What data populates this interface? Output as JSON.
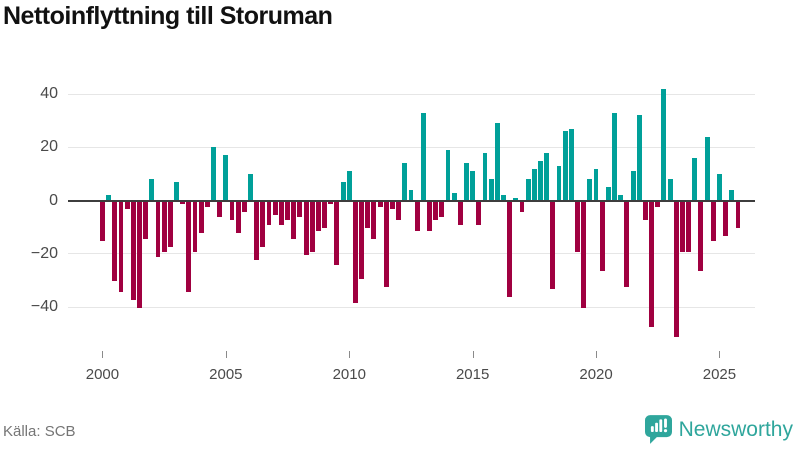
{
  "title": "Nettoinflyttning till Storuman",
  "source": "Källa: SCB",
  "brand": {
    "name": "Newsworthy",
    "color": "#2FA69C"
  },
  "colors": {
    "positive": "#00A099",
    "negative": "#A00040",
    "grid": "#e6e6e6",
    "zero_line": "#3d3d3d",
    "axis_text": "#4a4a4a",
    "title_text": "#111111",
    "source_text": "#757575"
  },
  "chart_data": {
    "type": "bar",
    "title": "Nettoinflyttning till Storuman",
    "frequency": "quarterly",
    "start_period": "2000Q1",
    "end_period": "2025Q4",
    "xlabel": "",
    "ylabel": "",
    "y_ticks": [
      40,
      20,
      0,
      -20,
      -40
    ],
    "ylim": [
      -55,
      48
    ],
    "x_tick_years": [
      2000,
      2005,
      2010,
      2015,
      2020,
      2025
    ],
    "x_tick_labels": [
      "2000",
      "2005",
      "2010",
      "2015",
      "2020",
      "2025"
    ],
    "grid": "horizontal",
    "legend": "none",
    "positive_color": "#00A099",
    "negative_color": "#A00040",
    "values": [
      -15,
      2,
      -30,
      -34,
      -3,
      -37,
      -40,
      -14,
      8,
      -21,
      -19,
      -17,
      7,
      -1,
      -34,
      -19,
      -12,
      -2,
      20,
      -6,
      17,
      -7,
      -12,
      -4,
      10,
      -22,
      -17,
      -9,
      -5,
      -9,
      -7,
      -14,
      -6,
      -20,
      -19,
      -11,
      -10,
      -1,
      -24,
      7,
      11,
      -38,
      -29,
      -10,
      -14,
      -2,
      -32,
      -3,
      -7,
      14,
      4,
      -11,
      33,
      -11,
      -7,
      -6,
      19,
      3,
      -9,
      14,
      11,
      -9,
      18,
      8,
      29,
      2,
      -36,
      1,
      -4,
      8,
      12,
      15,
      18,
      -33,
      13,
      26,
      27,
      -19,
      -40,
      8,
      12,
      -26,
      5,
      33,
      2,
      -32,
      11,
      32,
      -7,
      -47,
      -2,
      42,
      8,
      -51,
      -19,
      -19,
      16,
      -26,
      24,
      -15,
      10,
      -13,
      4,
      -10
    ]
  }
}
